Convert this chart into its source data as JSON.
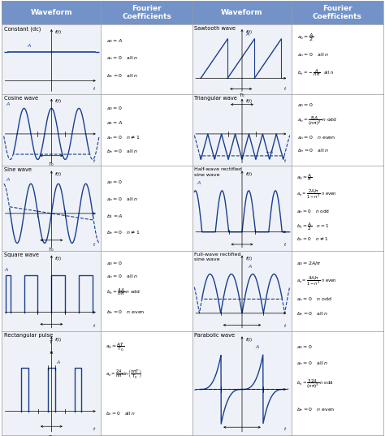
{
  "header_bg": "#7393c8",
  "header_text_color": "white",
  "cell_bg": "#eef1f7",
  "wave_color": "#1a3f8f",
  "rows": [
    {
      "left_name": "Constant (dc)",
      "right_name": "Sawtooth wave"
    },
    {
      "left_name": "Cosine wave",
      "right_name": "Triangular wave"
    },
    {
      "left_name": "Sine wave",
      "right_name": "Half-wave rectified\nsine wave"
    },
    {
      "left_name": "Square wave",
      "right_name": "Full-wave rectified\nsine wave"
    },
    {
      "left_name": "Rectangular pulse",
      "right_name": "Parabolic wave"
    }
  ]
}
